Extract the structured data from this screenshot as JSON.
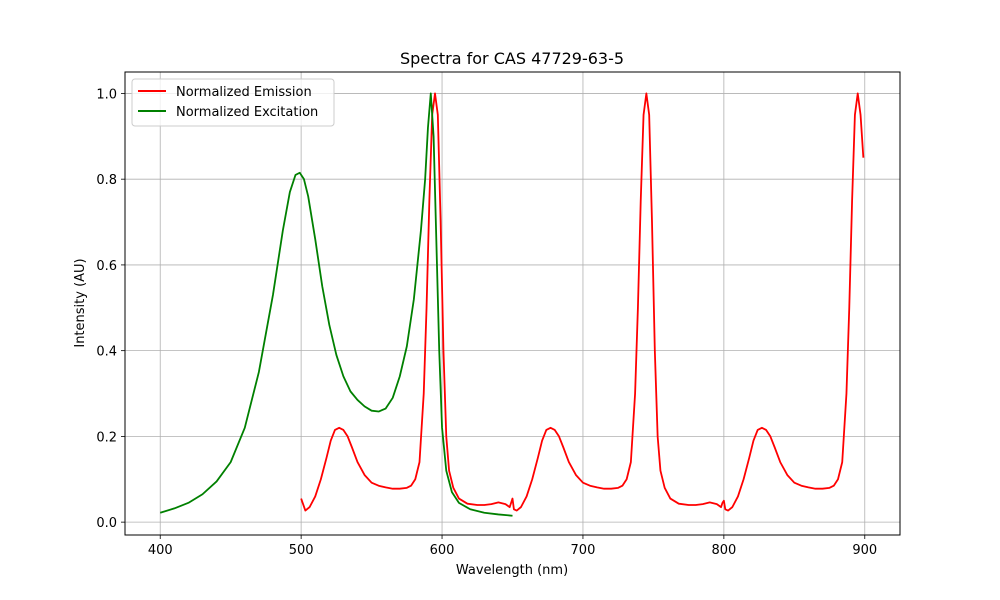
{
  "chart_data": {
    "type": "line",
    "title": "Spectra for CAS 47729-63-5",
    "xlabel": "Wavelength (nm)",
    "ylabel": "Intensity (AU)",
    "xlim": [
      375,
      925
    ],
    "ylim": [
      -0.03,
      1.05
    ],
    "xticks": [
      400,
      500,
      600,
      700,
      800,
      900
    ],
    "yticks": [
      0.0,
      0.2,
      0.4,
      0.6,
      0.8,
      1.0
    ],
    "grid": true,
    "legend_position": "top-left",
    "series": [
      {
        "name": "Normalized Emission",
        "color": "#ff0000",
        "points": [
          [
            500,
            0.055
          ],
          [
            503,
            0.027
          ],
          [
            506,
            0.035
          ],
          [
            510,
            0.06
          ],
          [
            514,
            0.1
          ],
          [
            518,
            0.15
          ],
          [
            521,
            0.19
          ],
          [
            524,
            0.215
          ],
          [
            527,
            0.22
          ],
          [
            530,
            0.215
          ],
          [
            533,
            0.2
          ],
          [
            536,
            0.175
          ],
          [
            540,
            0.14
          ],
          [
            545,
            0.11
          ],
          [
            550,
            0.092
          ],
          [
            555,
            0.085
          ],
          [
            560,
            0.081
          ],
          [
            565,
            0.078
          ],
          [
            570,
            0.078
          ],
          [
            575,
            0.08
          ],
          [
            578,
            0.085
          ],
          [
            581,
            0.1
          ],
          [
            584,
            0.14
          ],
          [
            587,
            0.3
          ],
          [
            589,
            0.5
          ],
          [
            591,
            0.75
          ],
          [
            593,
            0.95
          ],
          [
            595,
            1.0
          ],
          [
            597,
            0.95
          ],
          [
            599,
            0.7
          ],
          [
            601,
            0.4
          ],
          [
            603,
            0.2
          ],
          [
            605,
            0.12
          ],
          [
            608,
            0.08
          ],
          [
            612,
            0.055
          ],
          [
            618,
            0.043
          ],
          [
            625,
            0.04
          ],
          [
            630,
            0.04
          ],
          [
            635,
            0.042
          ],
          [
            640,
            0.046
          ],
          [
            645,
            0.042
          ],
          [
            648,
            0.035
          ],
          [
            649,
            0.045
          ],
          [
            650,
            0.055
          ],
          [
            651,
            0.03
          ],
          [
            653,
            0.027
          ],
          [
            656,
            0.035
          ],
          [
            660,
            0.06
          ],
          [
            664,
            0.1
          ],
          [
            668,
            0.15
          ],
          [
            671,
            0.19
          ],
          [
            674,
            0.215
          ],
          [
            677,
            0.22
          ],
          [
            680,
            0.215
          ],
          [
            683,
            0.2
          ],
          [
            686,
            0.175
          ],
          [
            690,
            0.14
          ],
          [
            695,
            0.11
          ],
          [
            700,
            0.092
          ],
          [
            705,
            0.085
          ],
          [
            710,
            0.081
          ],
          [
            715,
            0.078
          ],
          [
            720,
            0.078
          ],
          [
            725,
            0.08
          ],
          [
            728,
            0.085
          ],
          [
            731,
            0.1
          ],
          [
            734,
            0.14
          ],
          [
            737,
            0.3
          ],
          [
            739,
            0.5
          ],
          [
            741,
            0.75
          ],
          [
            743,
            0.95
          ],
          [
            745,
            1.0
          ],
          [
            747,
            0.95
          ],
          [
            749,
            0.7
          ],
          [
            751,
            0.4
          ],
          [
            753,
            0.2
          ],
          [
            755,
            0.12
          ],
          [
            758,
            0.08
          ],
          [
            762,
            0.055
          ],
          [
            768,
            0.043
          ],
          [
            775,
            0.04
          ],
          [
            780,
            0.04
          ],
          [
            785,
            0.042
          ],
          [
            790,
            0.046
          ],
          [
            795,
            0.042
          ],
          [
            798,
            0.035
          ],
          [
            799,
            0.045
          ],
          [
            800,
            0.05
          ],
          [
            801,
            0.03
          ],
          [
            803,
            0.027
          ],
          [
            806,
            0.035
          ],
          [
            810,
            0.06
          ],
          [
            814,
            0.1
          ],
          [
            818,
            0.15
          ],
          [
            821,
            0.19
          ],
          [
            824,
            0.215
          ],
          [
            827,
            0.22
          ],
          [
            830,
            0.215
          ],
          [
            833,
            0.2
          ],
          [
            836,
            0.175
          ],
          [
            840,
            0.14
          ],
          [
            845,
            0.11
          ],
          [
            850,
            0.092
          ],
          [
            855,
            0.085
          ],
          [
            860,
            0.081
          ],
          [
            865,
            0.078
          ],
          [
            870,
            0.078
          ],
          [
            875,
            0.08
          ],
          [
            878,
            0.085
          ],
          [
            881,
            0.1
          ],
          [
            884,
            0.14
          ],
          [
            887,
            0.3
          ],
          [
            889,
            0.5
          ],
          [
            891,
            0.75
          ],
          [
            893,
            0.95
          ],
          [
            895,
            1.0
          ],
          [
            897,
            0.95
          ],
          [
            899,
            0.85
          ]
        ]
      },
      {
        "name": "Normalized Excitation",
        "color": "#008000",
        "points": [
          [
            400,
            0.022
          ],
          [
            410,
            0.032
          ],
          [
            420,
            0.045
          ],
          [
            430,
            0.065
          ],
          [
            440,
            0.095
          ],
          [
            450,
            0.14
          ],
          [
            460,
            0.22
          ],
          [
            470,
            0.35
          ],
          [
            480,
            0.53
          ],
          [
            487,
            0.68
          ],
          [
            492,
            0.77
          ],
          [
            496,
            0.81
          ],
          [
            499,
            0.815
          ],
          [
            502,
            0.8
          ],
          [
            505,
            0.76
          ],
          [
            510,
            0.66
          ],
          [
            515,
            0.55
          ],
          [
            520,
            0.46
          ],
          [
            525,
            0.39
          ],
          [
            530,
            0.34
          ],
          [
            535,
            0.305
          ],
          [
            540,
            0.285
          ],
          [
            545,
            0.27
          ],
          [
            550,
            0.26
          ],
          [
            555,
            0.258
          ],
          [
            560,
            0.265
          ],
          [
            565,
            0.29
          ],
          [
            570,
            0.34
          ],
          [
            575,
            0.41
          ],
          [
            580,
            0.52
          ],
          [
            585,
            0.68
          ],
          [
            588,
            0.8
          ],
          [
            590,
            0.92
          ],
          [
            592,
            1.0
          ],
          [
            594,
            0.9
          ],
          [
            596,
            0.65
          ],
          [
            598,
            0.4
          ],
          [
            600,
            0.22
          ],
          [
            603,
            0.12
          ],
          [
            607,
            0.07
          ],
          [
            612,
            0.045
          ],
          [
            620,
            0.03
          ],
          [
            630,
            0.022
          ],
          [
            640,
            0.018
          ],
          [
            650,
            0.015
          ]
        ]
      }
    ]
  }
}
